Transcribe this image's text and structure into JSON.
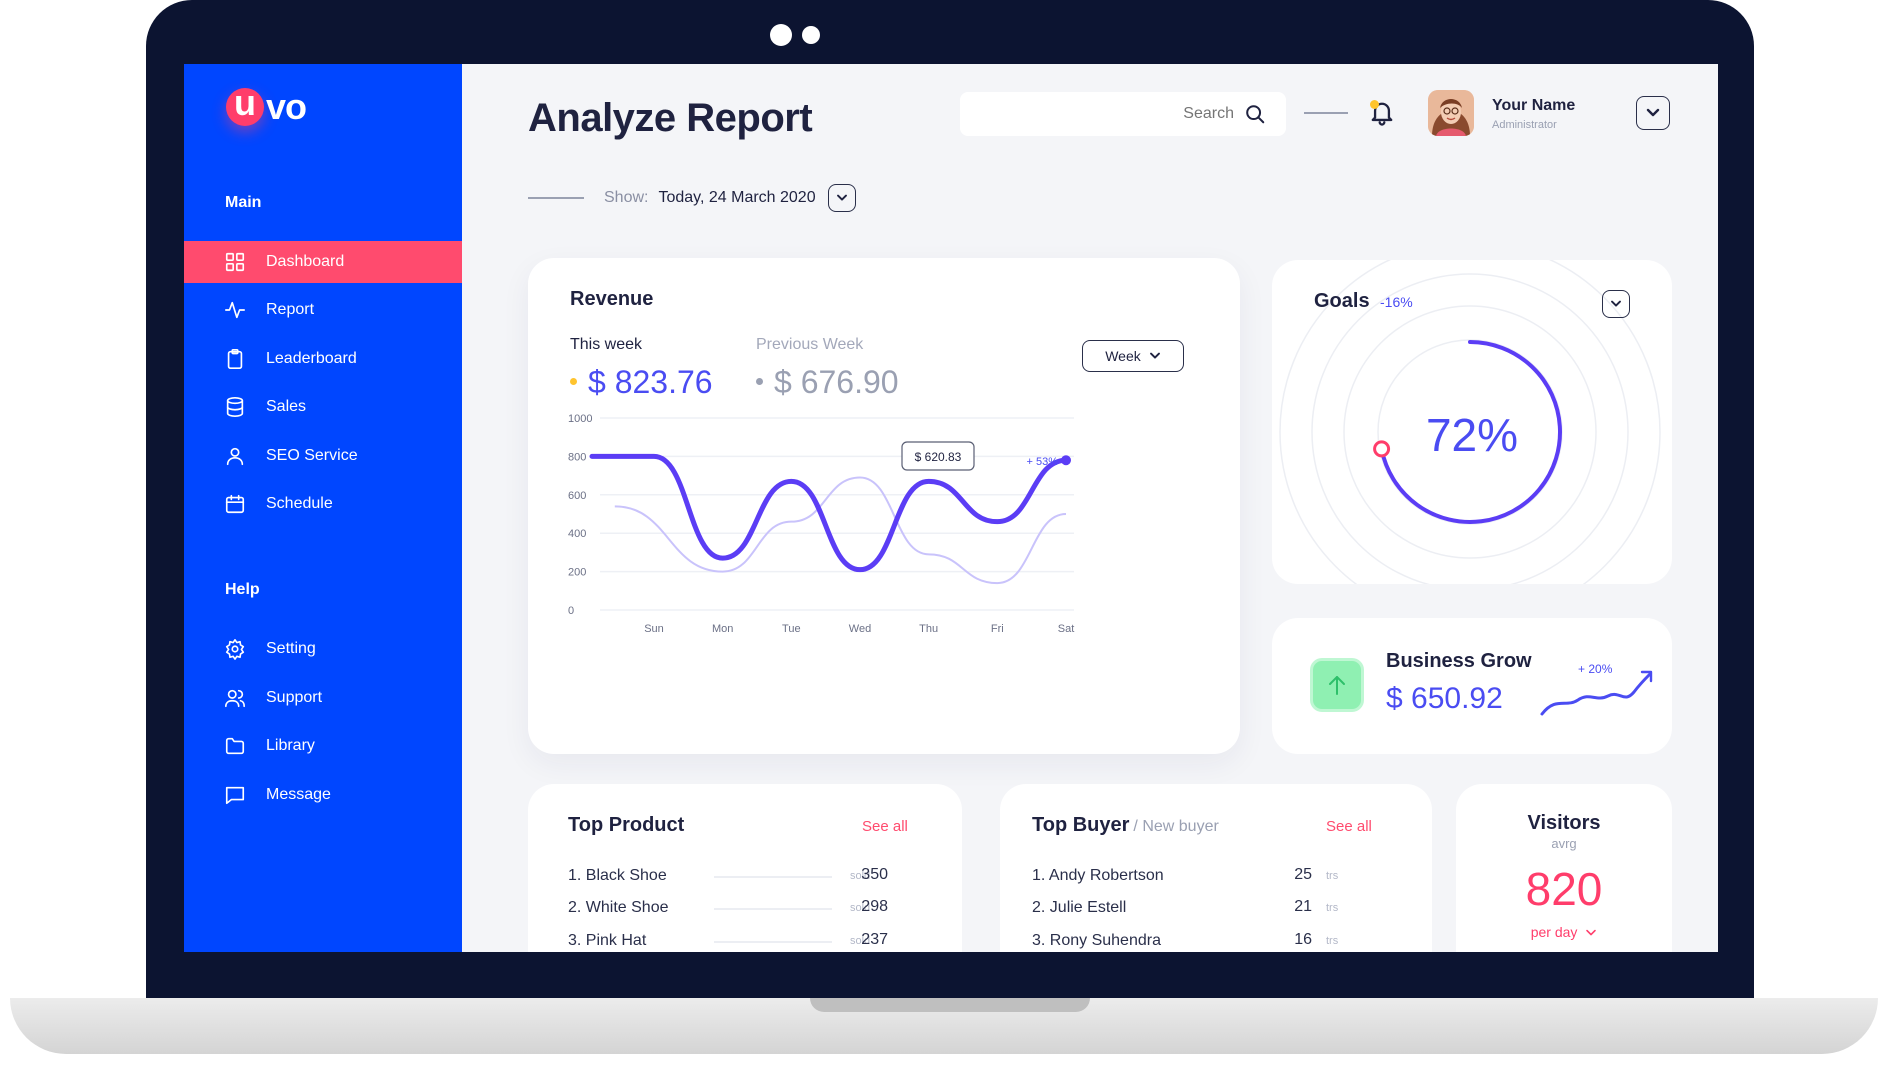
{
  "brand": {
    "logo_letter": "u",
    "logo_rest": "vo"
  },
  "sidebar": {
    "main_title": "Main",
    "help_title": "Help",
    "main_items": [
      {
        "label": "Dashboard",
        "icon": "grid-icon",
        "active": true
      },
      {
        "label": "Report",
        "icon": "activity-icon"
      },
      {
        "label": "Leaderboard",
        "icon": "clipboard-icon"
      },
      {
        "label": "Sales",
        "icon": "database-icon"
      },
      {
        "label": "SEO Service",
        "icon": "user-icon"
      },
      {
        "label": "Schedule",
        "icon": "calendar-icon"
      }
    ],
    "help_items": [
      {
        "label": "Setting",
        "icon": "gear-icon"
      },
      {
        "label": "Support",
        "icon": "users-icon"
      },
      {
        "label": "Library",
        "icon": "folder-icon"
      },
      {
        "label": "Message",
        "icon": "message-icon"
      }
    ]
  },
  "header": {
    "title": "Analyze Report",
    "search_placeholder": "Search",
    "user_name": "Your Name",
    "user_role": "Administrator",
    "show_label": "Show:",
    "show_date": "Today, 24 March 2020"
  },
  "revenue": {
    "title": "Revenue",
    "this_week_label": "This week",
    "this_week_value": "$ 823.76",
    "prev_week_label": "Previous Week",
    "prev_week_value": "$ 676.90",
    "period_select": "Week",
    "tooltip": "$ 620.83",
    "change": "+ 53%"
  },
  "chart_data": {
    "type": "line",
    "title": "Revenue",
    "xlabel": "",
    "ylabel": "",
    "x": [
      "Sun",
      "Mon",
      "Tue",
      "Wed",
      "Thu",
      "Fri",
      "Sat"
    ],
    "ylim": [
      0,
      1000
    ],
    "yticks": [
      0,
      200,
      400,
      600,
      800,
      1000
    ],
    "grid": true,
    "series": [
      {
        "name": "This week",
        "color": "#5b3df5",
        "values": [
          800,
          270,
          670,
          210,
          670,
          460,
          780
        ]
      },
      {
        "name": "Previous Week",
        "color": "#c9c3fb",
        "values": [
          540,
          200,
          460,
          690,
          290,
          140,
          500
        ]
      }
    ]
  },
  "goals": {
    "title": "Goals",
    "change": "-16%",
    "percent": "72%",
    "progress": 0.72
  },
  "business_grow": {
    "title": "Business Grow",
    "value": "$ 650.92",
    "change": "+ 20%"
  },
  "top_product": {
    "title": "Top Product",
    "see_all": "See all",
    "unit": "sold",
    "rows": [
      {
        "name": "1. Black Shoe",
        "value": "350"
      },
      {
        "name": "2. White Shoe",
        "value": "298"
      },
      {
        "name": "3. Pink Hat",
        "value": "237"
      }
    ]
  },
  "top_buyer": {
    "title": "Top Buyer",
    "subtitle": "/ New buyer",
    "see_all": "See all",
    "unit": "trs",
    "rows": [
      {
        "name": "1. Andy Robertson",
        "value": "25"
      },
      {
        "name": "2. Julie Estell",
        "value": "21"
      },
      {
        "name": "3. Rony Suhendra",
        "value": "16"
      }
    ]
  },
  "visitors": {
    "title": "Visitors",
    "subtitle": "avrg",
    "value": "820",
    "per": "per day"
  },
  "colors": {
    "sidebar": "#0046ff",
    "active": "#ff4b6e",
    "accent": "#4a4cf2",
    "pink": "#ff3d6b",
    "frame": "#0c1431"
  }
}
